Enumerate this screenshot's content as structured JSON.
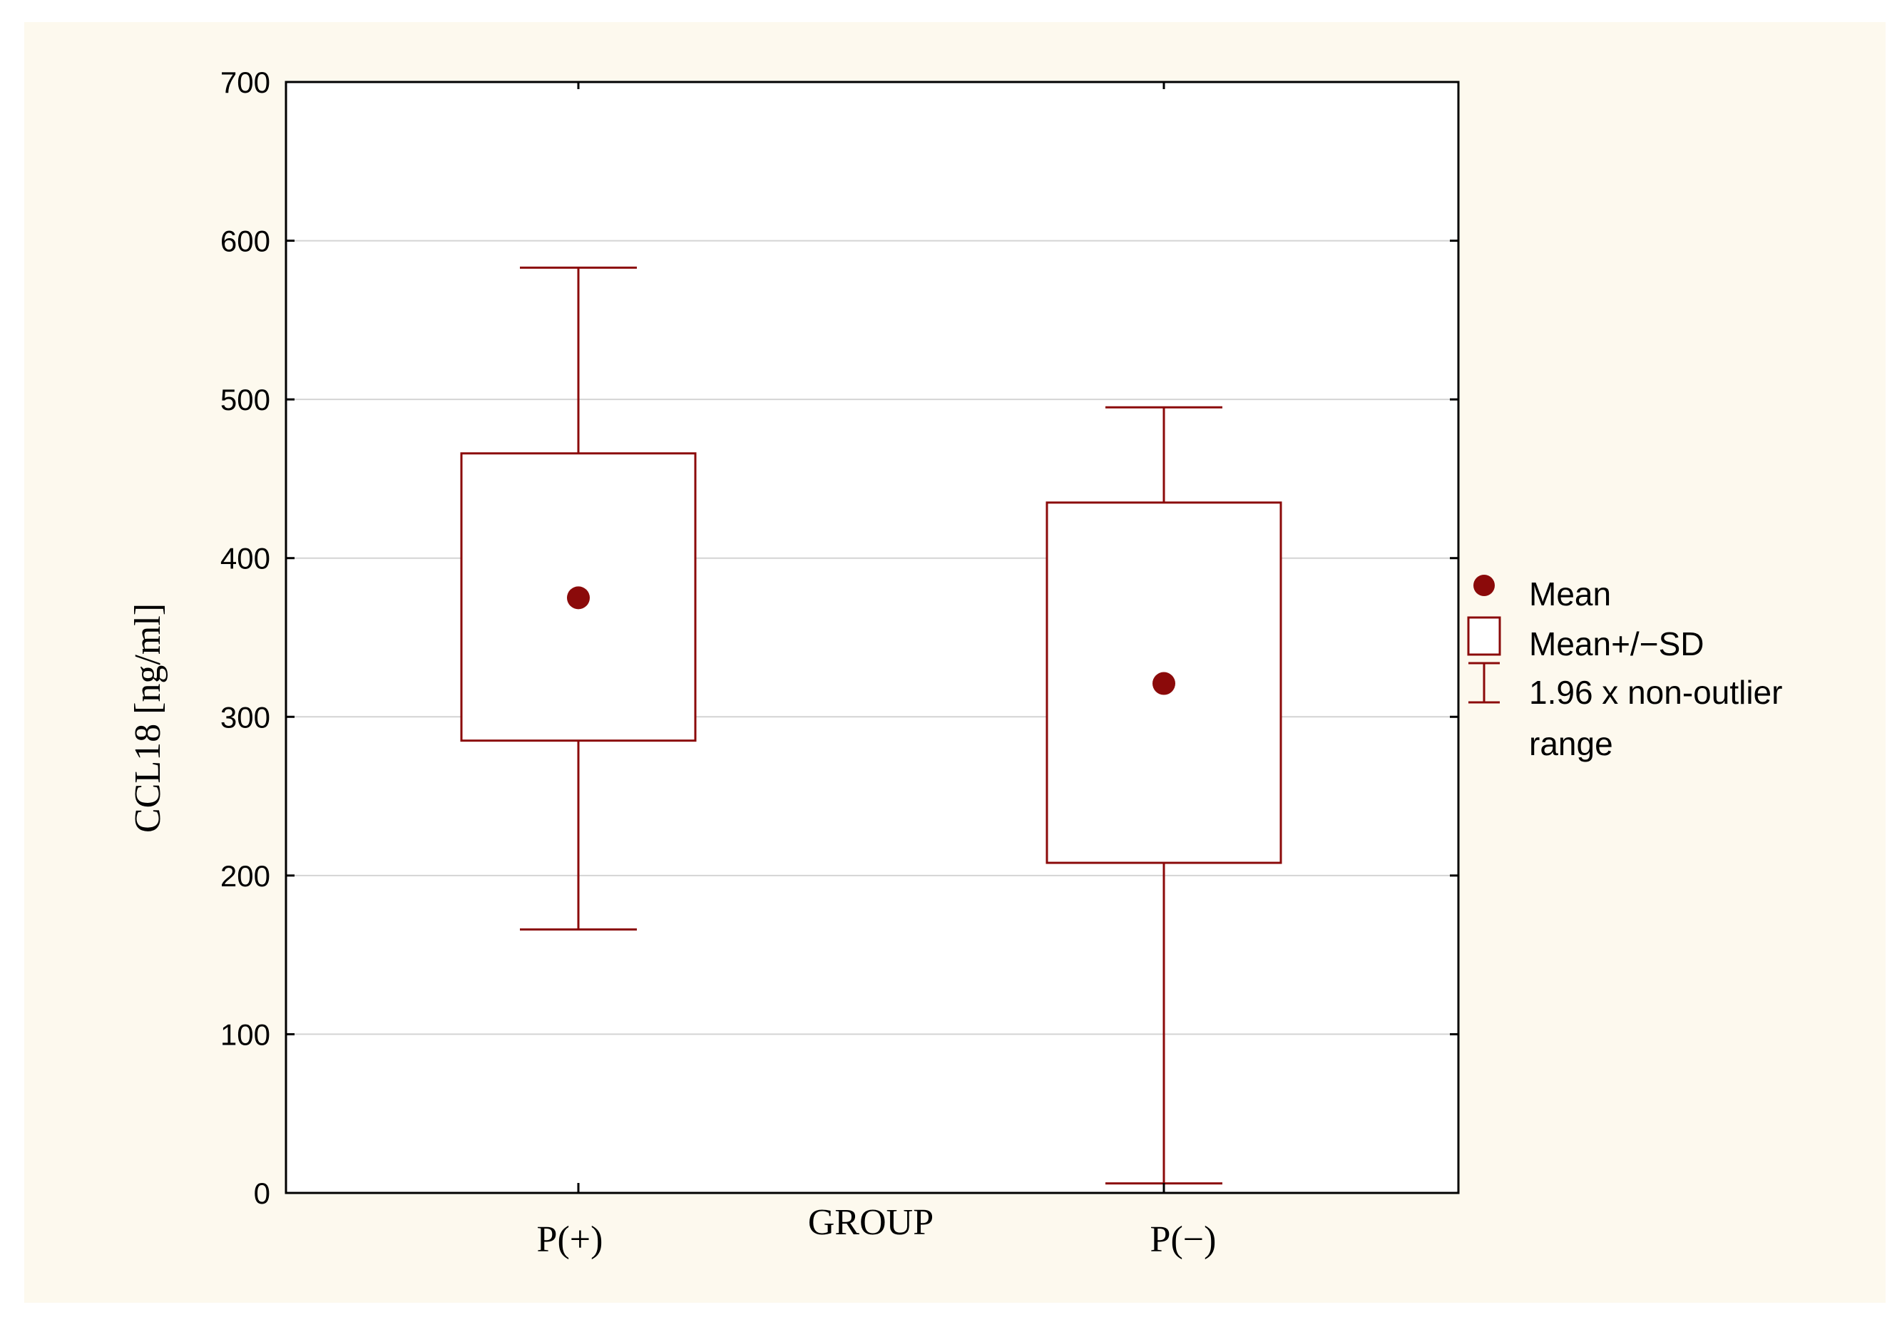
{
  "chart_data": {
    "type": "box",
    "title": "",
    "xlabel": "GROUP",
    "ylabel": "CCL18 [ng/ml]",
    "ylim": [
      0,
      700
    ],
    "yticks": [
      0,
      100,
      200,
      300,
      400,
      500,
      600,
      700
    ],
    "grid": true,
    "categories": [
      "P(+)",
      "P(−)"
    ],
    "series": [
      {
        "name": "P(+)",
        "mean": 375,
        "sd_low": 285,
        "sd_high": 466,
        "whisker_low": 166,
        "whisker_high": 583
      },
      {
        "name": "P(−)",
        "mean": 321,
        "sd_low": 208,
        "sd_high": 435,
        "whisker_low": 6,
        "whisker_high": 495
      }
    ],
    "legend": {
      "position": "right",
      "entries": [
        "Mean",
        "Mean+/−SD",
        "1.96 x non-outlier",
        "range"
      ]
    },
    "colors": {
      "primary": "#8b0a0a",
      "grid": "#d4d4d4",
      "background": "#fdf9ee"
    }
  }
}
